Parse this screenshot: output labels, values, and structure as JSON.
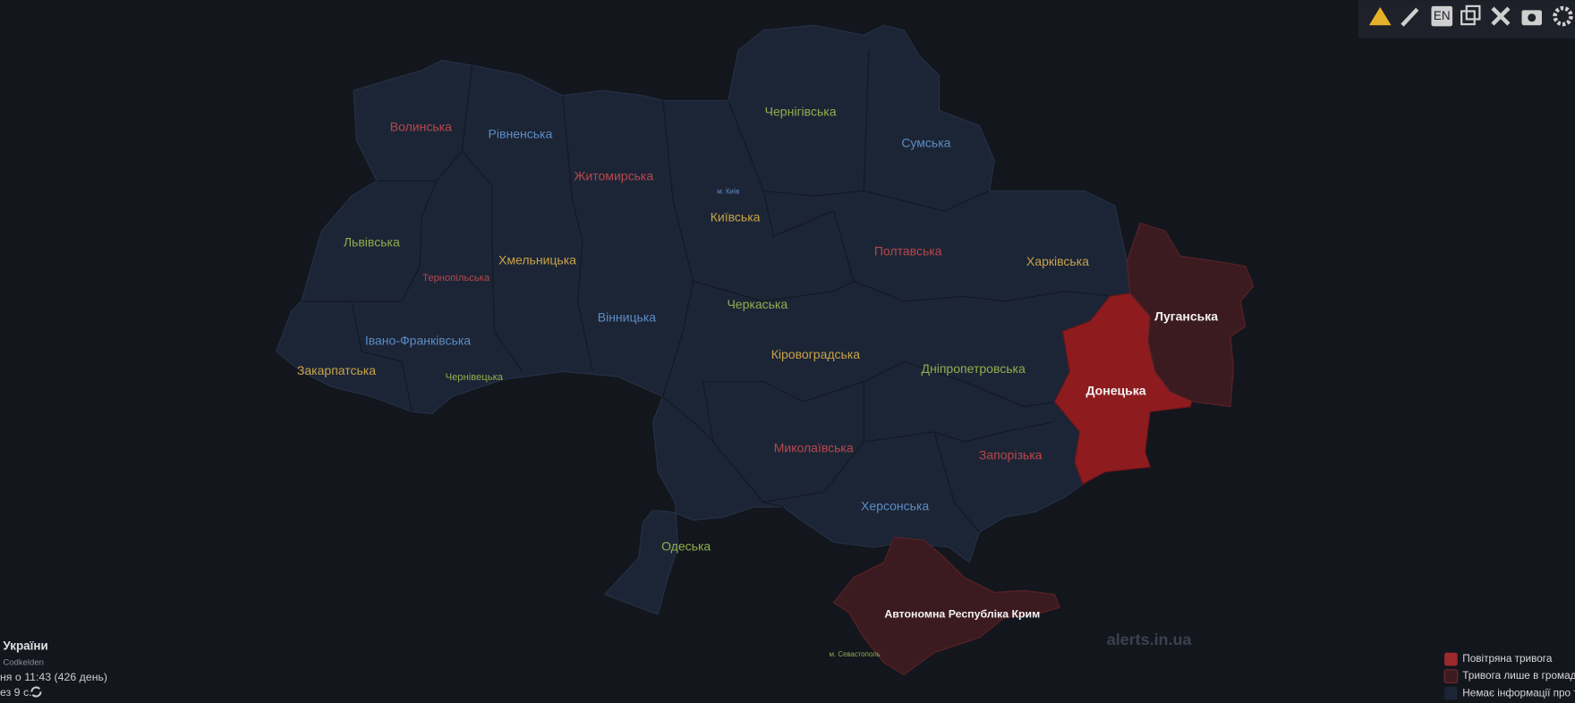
{
  "toolbar": {
    "language": "EN"
  },
  "map": {
    "regions": [
      "Волинська",
      "Рівненська",
      "Житомирська",
      "Чернігівська",
      "Сумська",
      "Київська",
      "Львівська",
      "Тернопільська",
      "Хмельницька",
      "Вінницька",
      "Черкаська",
      "Полтавська",
      "Харківська",
      "Луганська",
      "Івано-Франківська",
      "Закарпатська",
      "Чернівецька",
      "Кіровоградська",
      "Дніпропетровська",
      "Донецька",
      "Миколаївська",
      "Запорізька",
      "Херсонська",
      "Одеська",
      "Автономна Республіка Крим"
    ],
    "cities": [
      "м. Київ",
      "м. Севастополь"
    ],
    "watermark": "alerts.in.ua"
  },
  "footer": {
    "title": "України",
    "author": "Codkelden",
    "started": "ня о 11:43 (426 день)",
    "refresh": "ез 9 с."
  },
  "legend": [
    "Повітряна тривога",
    "Тривога лише в громад",
    "Немає інформації про т"
  ]
}
